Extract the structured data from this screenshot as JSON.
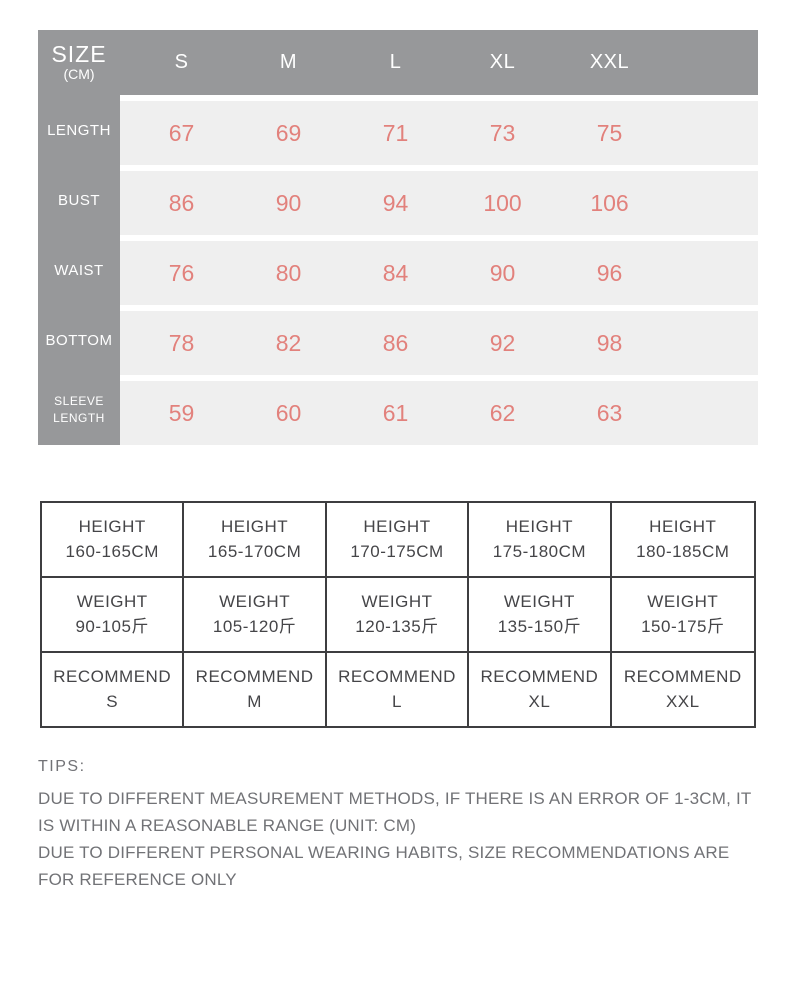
{
  "colors": {
    "header-gray": "#97989a",
    "band-gray": "#efefef",
    "accent-pink": "#e2817c",
    "table-border": "#3e3e40",
    "table-text": "#454548",
    "tips-text": "#717276"
  },
  "size_table": {
    "corner_title": "SIZE",
    "corner_subtitle": "(CM)",
    "unit": "CM",
    "columns": [
      "S",
      "M",
      "L",
      "XL",
      "XXL"
    ],
    "rows": [
      {
        "label": "LENGTH",
        "values": [
          67,
          69,
          71,
          73,
          75
        ]
      },
      {
        "label": "BUST",
        "values": [
          86,
          90,
          94,
          100,
          106
        ]
      },
      {
        "label": "WAIST",
        "values": [
          76,
          80,
          84,
          90,
          96
        ]
      },
      {
        "label": "BOTTOM",
        "values": [
          78,
          82,
          86,
          92,
          98
        ]
      },
      {
        "label": "SLEEVE LENGTH",
        "values": [
          59,
          60,
          61,
          62,
          63
        ]
      }
    ]
  },
  "fit_table": {
    "rows": [
      {
        "label": "HEIGHT",
        "values": [
          "160-165CM",
          "165-170CM",
          "170-175CM",
          "175-180CM",
          "180-185CM"
        ]
      },
      {
        "label": "WEIGHT",
        "values": [
          "90-105斤",
          "105-120斤",
          "120-135斤",
          "135-150斤",
          "150-175斤"
        ]
      },
      {
        "label": "RECOMMEND",
        "values": [
          "S",
          "M",
          "L",
          "XL",
          "XXL"
        ]
      }
    ]
  },
  "tips": {
    "title": "TIPS:",
    "paragraphs": [
      "DUE TO DIFFERENT MEASUREMENT METHODS, IF THERE IS AN ERROR OF 1-3CM, IT IS WITHIN A REASONABLE RANGE (UNIT: CM)",
      "DUE TO DIFFERENT PERSONAL WEARING HABITS, SIZE RECOMMENDATIONS ARE FOR REFERENCE ONLY"
    ]
  }
}
